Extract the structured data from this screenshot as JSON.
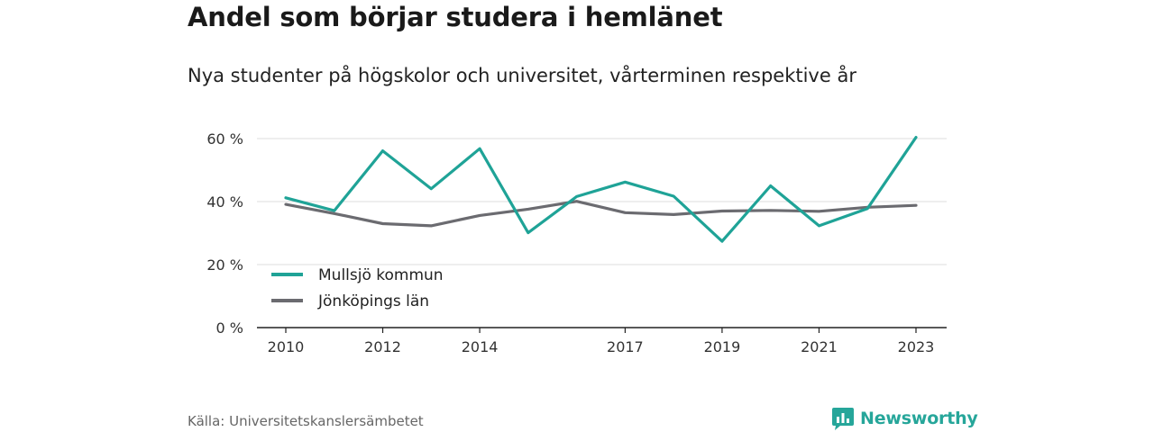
{
  "header": {
    "title": "Andel som börjar studera i hemlänet",
    "subtitle": "Nya studenter på högskolor och universitet, vårterminen respektive år"
  },
  "footer": {
    "source": "Källa: Universitetskanslersämbetet",
    "brand": "Newsworthy",
    "brand_icon": "bar-chart-speech-bubble-icon"
  },
  "chart_data": {
    "type": "line",
    "title": "Andel som börjar studera i hemlänet",
    "subtitle": "Nya studenter på högskolor och universitet, vårterminen respektive år",
    "x": [
      2010,
      2011,
      2012,
      2013,
      2014,
      2015,
      2016,
      2017,
      2018,
      2019,
      2020,
      2021,
      2022,
      2023
    ],
    "x_tick_labels": [
      "2010",
      "2012",
      "2014",
      "2017",
      "2019",
      "2021",
      "2023"
    ],
    "x_tick_values": [
      2010,
      2012,
      2014,
      2017,
      2019,
      2021,
      2023
    ],
    "xlim": [
      2010,
      2023
    ],
    "y_tick_labels": [
      "0 %",
      "20 %",
      "40 %",
      "60 %"
    ],
    "y_tick_values": [
      0,
      20,
      40,
      60
    ],
    "ylim": [
      0,
      60
    ],
    "grid": true,
    "legend_position": "bottom-left",
    "series": [
      {
        "name": "Mullsjö kommun",
        "color": "#1fa397",
        "values": [
          41.2,
          37.1,
          56.1,
          44.1,
          56.8,
          30.1,
          41.6,
          46.2,
          41.7,
          27.4,
          45.0,
          32.3,
          37.8,
          60.4
        ]
      },
      {
        "name": "Jönköpings län",
        "color": "#6b6b70",
        "values": [
          39.1,
          36.2,
          33.0,
          32.3,
          35.6,
          37.6,
          40.1,
          36.5,
          35.9,
          37.0,
          37.2,
          36.9,
          38.2,
          38.8
        ]
      }
    ]
  }
}
